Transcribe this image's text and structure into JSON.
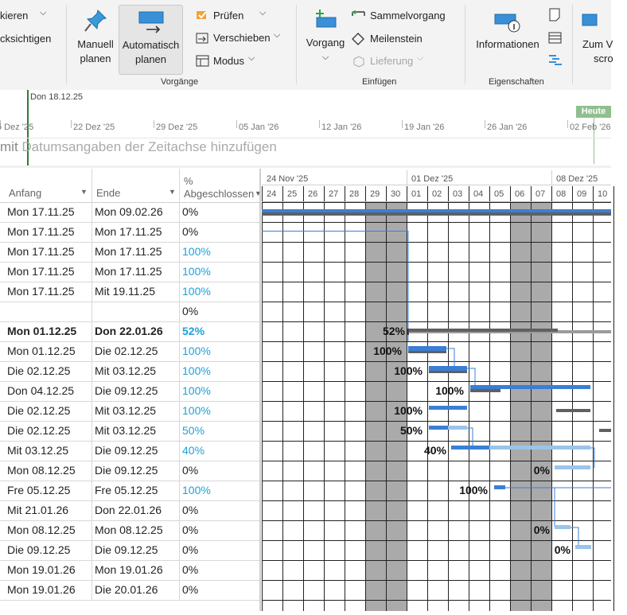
{
  "ribbon": {
    "partial_items": [
      "kieren",
      "cksichtigen"
    ],
    "manual_btn": {
      "line1": "Manuell",
      "line2": "planen"
    },
    "auto_btn": {
      "line1": "Automatisch",
      "line2": "planen"
    },
    "pruefen": "Prüfen",
    "verschieben": "Verschieben",
    "modus": "Modus",
    "group_vorgaenge": "Vorgänge",
    "vorgang": "Vorgang",
    "sammelvorgang": "Sammelvorgang",
    "meilenstein": "Meilenstein",
    "lieferung": "Lieferung",
    "group_einfuegen": "Einfügen",
    "informationen": "Informationen",
    "group_eigenschaften": "Eigenschaften",
    "zum_vorgang": {
      "line1": "Zum V",
      "line2": "scro"
    }
  },
  "timeline": {
    "current_date": "Don 18.12.25",
    "today": "Heute",
    "ticks": [
      "5 Dez '25",
      "22 Dez '25",
      "29 Dez '25",
      "05 Jan '26",
      "12 Jan '26",
      "19 Jan '26",
      "26 Jan '26",
      "02 Feb '26"
    ],
    "placeholder_prefix": "mit ",
    "placeholder_text": "Datumsangaben der Zeitachse hinzufügen"
  },
  "table": {
    "headers": {
      "start": "Anfang",
      "end": "Ende",
      "pct_line1": "%",
      "pct_line2": "Abgeschlossen"
    },
    "rows": [
      {
        "start": "Mon 17.11.25",
        "end": "Mon 09.02.26",
        "pct": "0%"
      },
      {
        "start": "Mon 17.11.25",
        "end": "Mon 17.11.25",
        "pct": "0%"
      },
      {
        "start": "Mon 17.11.25",
        "end": "Mon 17.11.25",
        "pct": "100%"
      },
      {
        "start": "Mon 17.11.25",
        "end": "Mon 17.11.25",
        "pct": "100%"
      },
      {
        "start": "Mon 17.11.25",
        "end": "Mit 19.11.25",
        "pct": "100%"
      },
      {
        "start": "",
        "end": "",
        "pct": "0%"
      },
      {
        "start": "Mon 01.12.25",
        "end": "Don 22.01.26",
        "pct": "52%"
      },
      {
        "start": "Mon 01.12.25",
        "end": "Die 02.12.25",
        "pct": "100%"
      },
      {
        "start": "Die 02.12.25",
        "end": "Mit 03.12.25",
        "pct": "100%"
      },
      {
        "start": "Don 04.12.25",
        "end": "Die 09.12.25",
        "pct": "100%"
      },
      {
        "start": "Die 02.12.25",
        "end": "Mit 03.12.25",
        "pct": "100%"
      },
      {
        "start": "Die 02.12.25",
        "end": "Mit 03.12.25",
        "pct": "50%"
      },
      {
        "start": "Mit 03.12.25",
        "end": "Die 09.12.25",
        "pct": "40%"
      },
      {
        "start": "Mon 08.12.25",
        "end": "Die 09.12.25",
        "pct": "0%"
      },
      {
        "start": "Fre 05.12.25",
        "end": "Fre 05.12.25",
        "pct": "100%"
      },
      {
        "start": "Mit 21.01.26",
        "end": "Don 22.01.26",
        "pct": "0%"
      },
      {
        "start": "Mon 08.12.25",
        "end": "Mon 08.12.25",
        "pct": "0%"
      },
      {
        "start": "Die 09.12.25",
        "end": "Die 09.12.25",
        "pct": "0%"
      },
      {
        "start": "Mon 19.01.26",
        "end": "Mon 19.01.26",
        "pct": "0%"
      },
      {
        "start": "Mon 19.01.26",
        "end": "Die 20.01.26",
        "pct": "0%"
      }
    ]
  },
  "gantt": {
    "weeks": [
      "24 Nov '25",
      "01 Dez '25",
      "08 Dez '25"
    ],
    "days": [
      "24",
      "25",
      "26",
      "27",
      "28",
      "29",
      "30",
      "01",
      "02",
      "03",
      "04",
      "05",
      "06",
      "07",
      "08",
      "09",
      "10"
    ],
    "bar_labels": [
      "52%",
      "100%",
      "100%",
      "100%",
      "100%",
      "50%",
      "40%",
      "0%",
      "100%",
      "0%",
      "0%"
    ]
  },
  "colors": {
    "ribbon_bg": "#f3f3f3",
    "task_blue": "#3a7fd5",
    "light_blue": "#9cc3ea",
    "summary_gray": "#606060",
    "weekend_gray": "#aaaaaa",
    "percent_blue": "#1fa0d8",
    "today_green": "#8fbf8f",
    "current_date_green": "#2e7d32"
  }
}
